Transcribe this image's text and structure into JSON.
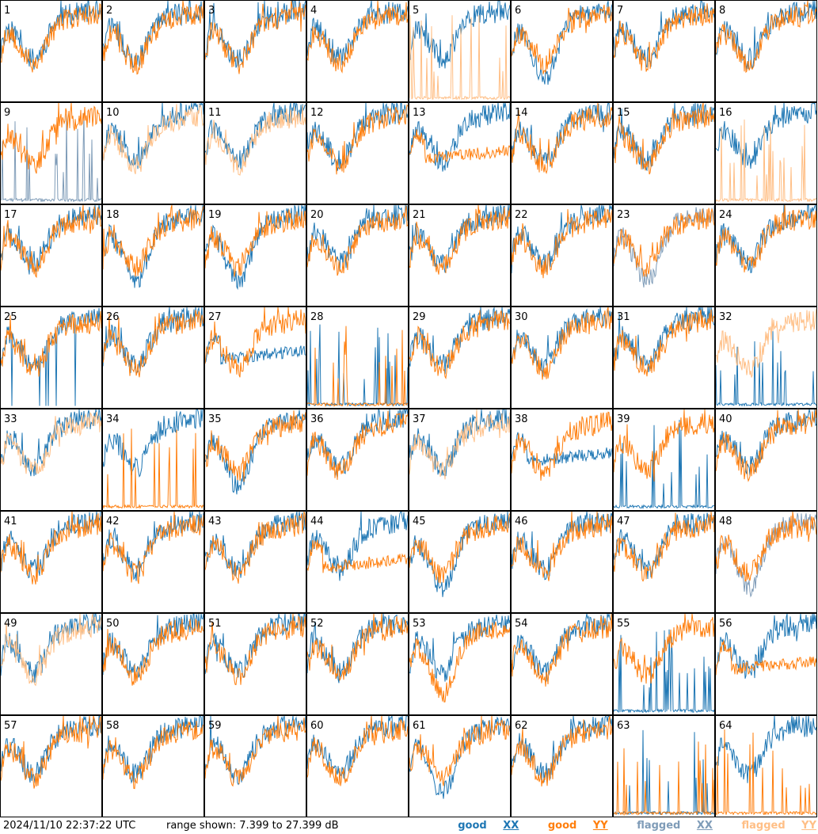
{
  "footer": {
    "timestamp": "2024/11/10 22:37:22 UTC",
    "range_label": "range shown: 7.399 to 27.399 dB"
  },
  "legend": [
    {
      "word": "good",
      "pol": "XX",
      "color": "#1f77b4"
    },
    {
      "word": "good",
      "pol": "YY",
      "color": "#ff7f0e"
    },
    {
      "word": "flagged",
      "pol": "XX",
      "color": "#7f9cb8"
    },
    {
      "word": "flagged",
      "pol": "YY",
      "color": "#ffbf86"
    }
  ],
  "colors": {
    "good_xx": "#1f77b4",
    "good_yy": "#ff7f0e",
    "flagged_xx": "#7f9cb8",
    "flagged_yy": "#ffbf86"
  },
  "chart_data": {
    "type": "line",
    "layout": "8x8 small-multiples",
    "ylim": [
      7.399,
      27.399
    ],
    "yunit": "dB",
    "series_per_panel": [
      "XX",
      "YY"
    ],
    "panels": [
      {
        "label": "1",
        "xx": "good",
        "yy": "good",
        "xx_shape": "normal",
        "yy_shape": "normal"
      },
      {
        "label": "2",
        "xx": "good",
        "yy": "good",
        "xx_shape": "normal",
        "yy_shape": "normal"
      },
      {
        "label": "3",
        "xx": "good",
        "yy": "good",
        "xx_shape": "normal",
        "yy_shape": "normal"
      },
      {
        "label": "4",
        "xx": "good",
        "yy": "good",
        "xx_shape": "normal",
        "yy_shape": "normal"
      },
      {
        "label": "5",
        "xx": "good",
        "yy": "flagged",
        "xx_shape": "normal",
        "yy_shape": "spiky-low"
      },
      {
        "label": "6",
        "xx": "good",
        "yy": "good",
        "xx_shape": "low-dip",
        "yy_shape": "normal"
      },
      {
        "label": "7",
        "xx": "good",
        "yy": "good",
        "xx_shape": "normal",
        "yy_shape": "normal"
      },
      {
        "label": "8",
        "xx": "good",
        "yy": "good",
        "xx_shape": "normal",
        "yy_shape": "normal"
      },
      {
        "label": "9",
        "xx": "flagged",
        "yy": "good",
        "xx_shape": "spiky-low",
        "yy_shape": "normal"
      },
      {
        "label": "10",
        "xx": "good",
        "yy": "flagged",
        "xx_shape": "normal",
        "yy_shape": "normal"
      },
      {
        "label": "11",
        "xx": "good",
        "yy": "flagged",
        "xx_shape": "normal",
        "yy_shape": "normal"
      },
      {
        "label": "12",
        "xx": "good",
        "yy": "good",
        "xx_shape": "normal",
        "yy_shape": "normal"
      },
      {
        "label": "13",
        "xx": "good",
        "yy": "good",
        "xx_shape": "normal",
        "yy_shape": "flat"
      },
      {
        "label": "14",
        "xx": "good",
        "yy": "good",
        "xx_shape": "normal",
        "yy_shape": "normal"
      },
      {
        "label": "15",
        "xx": "good",
        "yy": "good",
        "xx_shape": "normal",
        "yy_shape": "normal"
      },
      {
        "label": "16",
        "xx": "good",
        "yy": "flagged",
        "xx_shape": "normal",
        "yy_shape": "spiky-low"
      },
      {
        "label": "17",
        "xx": "good",
        "yy": "good",
        "xx_shape": "normal",
        "yy_shape": "normal"
      },
      {
        "label": "18",
        "xx": "good",
        "yy": "good",
        "xx_shape": "low-dip",
        "yy_shape": "normal"
      },
      {
        "label": "19",
        "xx": "good",
        "yy": "good",
        "xx_shape": "low-dip",
        "yy_shape": "normal"
      },
      {
        "label": "20",
        "xx": "good",
        "yy": "good",
        "xx_shape": "normal",
        "yy_shape": "normal"
      },
      {
        "label": "21",
        "xx": "good",
        "yy": "good",
        "xx_shape": "normal",
        "yy_shape": "normal"
      },
      {
        "label": "22",
        "xx": "good",
        "yy": "good",
        "xx_shape": "normal",
        "yy_shape": "normal"
      },
      {
        "label": "23",
        "xx": "flagged",
        "yy": "good",
        "xx_shape": "low-dip",
        "yy_shape": "normal"
      },
      {
        "label": "24",
        "xx": "good",
        "yy": "good",
        "xx_shape": "normal",
        "yy_shape": "normal"
      },
      {
        "label": "25",
        "xx": "good",
        "yy": "good",
        "xx_shape": "sparse-spikes",
        "yy_shape": "normal"
      },
      {
        "label": "26",
        "xx": "good",
        "yy": "good",
        "xx_shape": "normal",
        "yy_shape": "normal"
      },
      {
        "label": "27",
        "xx": "good",
        "yy": "good",
        "xx_shape": "flat",
        "yy_shape": "normal"
      },
      {
        "label": "28",
        "xx": "good",
        "yy": "good",
        "xx_shape": "spiky-low",
        "yy_shape": "spiky-low"
      },
      {
        "label": "29",
        "xx": "good",
        "yy": "good",
        "xx_shape": "normal",
        "yy_shape": "normal"
      },
      {
        "label": "30",
        "xx": "good",
        "yy": "good",
        "xx_shape": "normal",
        "yy_shape": "normal"
      },
      {
        "label": "31",
        "xx": "good",
        "yy": "good",
        "xx_shape": "normal",
        "yy_shape": "normal"
      },
      {
        "label": "32",
        "xx": "good",
        "yy": "flagged",
        "xx_shape": "spiky-low",
        "yy_shape": "normal"
      },
      {
        "label": "33",
        "xx": "good",
        "yy": "flagged",
        "xx_shape": "normal",
        "yy_shape": "normal"
      },
      {
        "label": "34",
        "xx": "good",
        "yy": "good",
        "xx_shape": "normal",
        "yy_shape": "spiky-low"
      },
      {
        "label": "35",
        "xx": "good",
        "yy": "good",
        "xx_shape": "low-dip",
        "yy_shape": "normal"
      },
      {
        "label": "36",
        "xx": "good",
        "yy": "good",
        "xx_shape": "normal",
        "yy_shape": "normal"
      },
      {
        "label": "37",
        "xx": "good",
        "yy": "flagged",
        "xx_shape": "normal",
        "yy_shape": "normal"
      },
      {
        "label": "38",
        "xx": "good",
        "yy": "good",
        "xx_shape": "flat",
        "yy_shape": "normal"
      },
      {
        "label": "39",
        "xx": "good",
        "yy": "good",
        "xx_shape": "spiky-low",
        "yy_shape": "normal"
      },
      {
        "label": "40",
        "xx": "good",
        "yy": "good",
        "xx_shape": "normal",
        "yy_shape": "normal"
      },
      {
        "label": "41",
        "xx": "good",
        "yy": "good",
        "xx_shape": "normal",
        "yy_shape": "normal"
      },
      {
        "label": "42",
        "xx": "good",
        "yy": "good",
        "xx_shape": "normal",
        "yy_shape": "normal"
      },
      {
        "label": "43",
        "xx": "good",
        "yy": "good",
        "xx_shape": "normal",
        "yy_shape": "normal"
      },
      {
        "label": "44",
        "xx": "good",
        "yy": "good",
        "xx_shape": "normal",
        "yy_shape": "flat"
      },
      {
        "label": "45",
        "xx": "good",
        "yy": "good",
        "xx_shape": "low-dip",
        "yy_shape": "normal"
      },
      {
        "label": "46",
        "xx": "good",
        "yy": "good",
        "xx_shape": "normal",
        "yy_shape": "normal"
      },
      {
        "label": "47",
        "xx": "good",
        "yy": "good",
        "xx_shape": "normal",
        "yy_shape": "normal"
      },
      {
        "label": "48",
        "xx": "flagged",
        "yy": "good",
        "xx_shape": "low-dip",
        "yy_shape": "normal"
      },
      {
        "label": "49",
        "xx": "good",
        "yy": "flagged",
        "xx_shape": "normal",
        "yy_shape": "normal"
      },
      {
        "label": "50",
        "xx": "good",
        "yy": "good",
        "xx_shape": "normal",
        "yy_shape": "normal"
      },
      {
        "label": "51",
        "xx": "good",
        "yy": "good",
        "xx_shape": "normal",
        "yy_shape": "normal"
      },
      {
        "label": "52",
        "xx": "good",
        "yy": "good",
        "xx_shape": "normal",
        "yy_shape": "normal"
      },
      {
        "label": "53",
        "xx": "good",
        "yy": "good",
        "xx_shape": "normal",
        "yy_shape": "low-dip"
      },
      {
        "label": "54",
        "xx": "good",
        "yy": "good",
        "xx_shape": "normal",
        "yy_shape": "normal"
      },
      {
        "label": "55",
        "xx": "good",
        "yy": "good",
        "xx_shape": "spiky-low",
        "yy_shape": "normal"
      },
      {
        "label": "56",
        "xx": "good",
        "yy": "good",
        "xx_shape": "normal",
        "yy_shape": "flat"
      },
      {
        "label": "57",
        "xx": "good",
        "yy": "good",
        "xx_shape": "normal",
        "yy_shape": "normal"
      },
      {
        "label": "58",
        "xx": "good",
        "yy": "good",
        "xx_shape": "normal",
        "yy_shape": "normal"
      },
      {
        "label": "59",
        "xx": "good",
        "yy": "good",
        "xx_shape": "normal",
        "yy_shape": "normal"
      },
      {
        "label": "60",
        "xx": "good",
        "yy": "good",
        "xx_shape": "normal",
        "yy_shape": "normal"
      },
      {
        "label": "61",
        "xx": "good",
        "yy": "good",
        "xx_shape": "low-dip",
        "yy_shape": "normal"
      },
      {
        "label": "62",
        "xx": "good",
        "yy": "good",
        "xx_shape": "normal",
        "yy_shape": "normal"
      },
      {
        "label": "63",
        "xx": "good",
        "yy": "good",
        "xx_shape": "spiky-low",
        "yy_shape": "spiky-low"
      },
      {
        "label": "64",
        "xx": "good",
        "yy": "good",
        "xx_shape": "normal",
        "yy_shape": "spiky-low"
      }
    ]
  }
}
